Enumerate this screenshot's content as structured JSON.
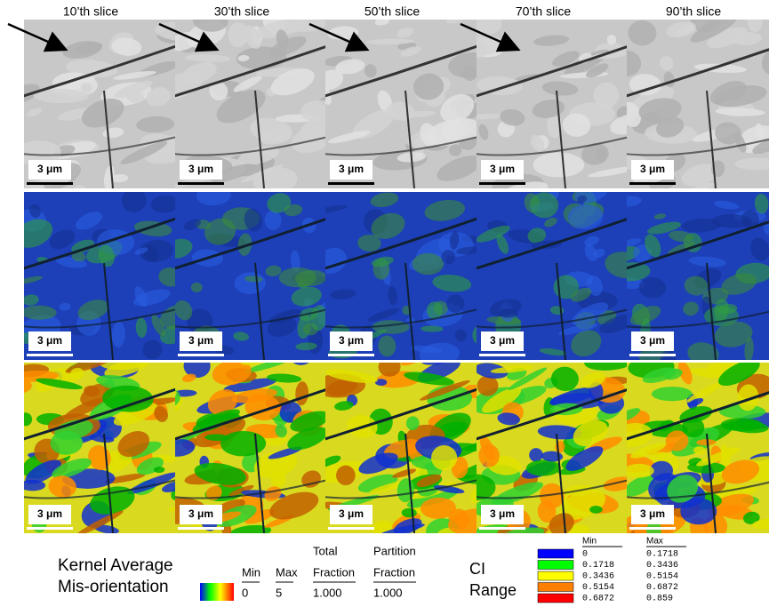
{
  "columns": [
    "10’th slice",
    "30’th slice",
    "50’th slice",
    "70’th slice",
    "90’th slice"
  ],
  "panel_rows": [
    {
      "scale_labels": [
        "3 μm",
        "3 μm",
        "3 μm",
        "3 μm",
        "3 μm"
      ]
    },
    {
      "scale_labels": [
        "3 μm",
        "3 μm",
        "3 μm",
        "3 μm",
        "3 μm"
      ]
    },
    {
      "scale_labels": [
        "3 μm",
        "3 μm",
        "3 μm",
        "3 μm",
        "3 μm"
      ]
    }
  ],
  "kam_legend": {
    "title_lines": [
      "Kernel Average",
      "Mis-orientation"
    ],
    "headers": [
      [
        "Min"
      ],
      [
        "Max"
      ],
      [
        "Total",
        "Fraction"
      ],
      [
        "Partition",
        "Fraction"
      ]
    ],
    "row": [
      "0",
      "5",
      "1.000",
      "1.000"
    ]
  },
  "ci_legend": {
    "title_lines": [
      "CI",
      "Range"
    ],
    "headers": [
      "Min",
      "Max"
    ],
    "colors": [
      "#0000ff",
      "#00ff00",
      "#ffff00",
      "#ff8000",
      "#ff0000"
    ],
    "rows": [
      [
        "0",
        "0.1718"
      ],
      [
        "0.1718",
        "0.3436"
      ],
      [
        "0.3436",
        "0.5154"
      ],
      [
        "0.5154",
        "0.6872"
      ],
      [
        "0.6872",
        "0.859"
      ]
    ]
  }
}
